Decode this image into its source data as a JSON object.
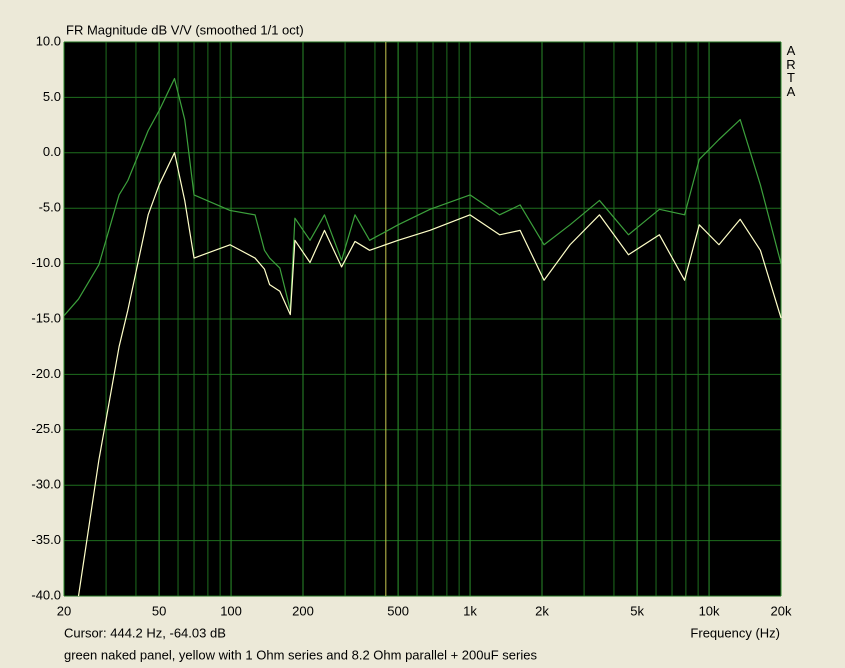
{
  "chart_data": {
    "type": "line",
    "title": "FR Magnitude dB V/V (smoothed 1/1 oct)",
    "brand": "ARTA",
    "xlabel": "Frequency (Hz)",
    "cursor": {
      "value": 444.2,
      "label": "Cursor: 444.2 Hz, -64.03 dB",
      "color": "#c8c850"
    },
    "note": "green naked panel, yellow with 1 Ohm series and 8.2 Ohm parallel + 200uF series",
    "xscale": "log",
    "grid": true,
    "x": [
      20,
      23,
      28,
      34,
      37,
      45,
      50,
      58,
      64,
      70,
      99,
      126,
      138,
      145,
      160,
      177,
      185,
      214,
      246,
      290,
      330,
      380,
      500,
      680,
      1000,
      1330,
      1620,
      2040,
      2620,
      3480,
      4600,
      6200,
      7900,
      9100,
      11000,
      13500,
      16400,
      20000
    ],
    "series": [
      {
        "color": "#3ca03c",
        "values": [
          -14.7,
          -13.2,
          -10.1,
          -3.8,
          -2.5,
          2.0,
          3.8,
          6.7,
          3.0,
          -3.8,
          -5.2,
          -5.6,
          -8.8,
          -9.5,
          -10.4,
          -14.2,
          -5.9,
          -7.9,
          -5.6,
          -9.7,
          -5.6,
          -7.9,
          -6.5,
          -5.1,
          -3.8,
          -5.6,
          -4.7,
          -8.3,
          -6.5,
          -4.3,
          -7.4,
          -5.1,
          -5.6,
          -0.6,
          1.2,
          3.0,
          -2.9,
          -10.0
        ]
      },
      {
        "color": "#ffffc8",
        "values": [
          null,
          -40,
          -27.7,
          -17.5,
          -14.2,
          -5.6,
          -2.9,
          0,
          -4.3,
          -9.5,
          -8.3,
          -9.5,
          -10.5,
          -11.9,
          -12.5,
          -14.6,
          -7.9,
          -9.9,
          -7.0,
          -10.3,
          -8.0,
          -8.8,
          -7.9,
          -7.0,
          -5.6,
          -7.4,
          -7.0,
          -11.5,
          -8.3,
          -5.6,
          -9.2,
          -7.4,
          -11.5,
          -6.5,
          -8.3,
          -6.0,
          -8.8,
          -14.9
        ]
      }
    ],
    "xlim": [
      20,
      20000
    ],
    "ylim": [
      -40,
      10
    ],
    "xticks": [
      20,
      50,
      100,
      200,
      500,
      {
        "value": 1000,
        "label": "1k"
      },
      {
        "value": 2000,
        "label": "2k"
      },
      {
        "value": 5000,
        "label": "5k"
      },
      {
        "value": 10000,
        "label": "10k"
      },
      {
        "value": 20000,
        "label": "20k"
      }
    ],
    "yticks": [
      {
        "value": 10,
        "label": "10.0"
      },
      {
        "value": 5,
        "label": "5.0"
      },
      {
        "value": 0,
        "label": "0.0"
      },
      {
        "value": -5,
        "label": "-5.0"
      },
      {
        "value": -10,
        "label": "-10.0"
      },
      {
        "value": -15,
        "label": "-15.0"
      },
      {
        "value": -20,
        "label": "-20.0"
      },
      {
        "value": -25,
        "label": "-25.0"
      },
      {
        "value": -30,
        "label": "-30.0"
      },
      {
        "value": -35,
        "label": "-35.0"
      },
      {
        "value": -40,
        "label": "-40.0"
      }
    ]
  }
}
